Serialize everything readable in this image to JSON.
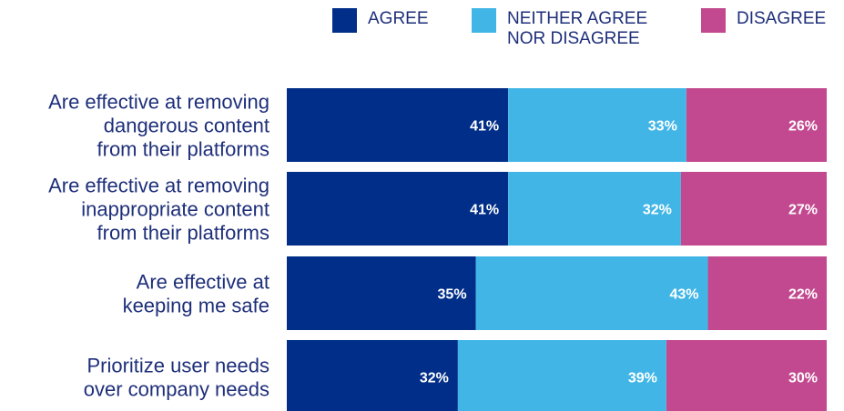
{
  "chart_data": {
    "type": "bar",
    "orientation": "horizontal",
    "stacked": true,
    "percent_scale": true,
    "categories": [
      [
        "Are effective at removing",
        "dangerous content",
        "from their platforms"
      ],
      [
        "Are effective at removing",
        "inappropriate content",
        "from their platforms"
      ],
      [
        "Are effective at",
        "keeping me safe"
      ],
      [
        "Prioritize user needs",
        "over company needs"
      ]
    ],
    "series": [
      {
        "name": "AGREE",
        "color": "#002e88",
        "values": [
          41,
          41,
          35,
          32
        ]
      },
      {
        "name": "NEITHER AGREE\nNOR DISAGREE",
        "color": "#41b6e6",
        "values": [
          33,
          32,
          43,
          39
        ]
      },
      {
        "name": "DISAGREE",
        "color": "#c2498f",
        "values": [
          26,
          27,
          22,
          30
        ]
      }
    ],
    "value_suffix": "%",
    "legend_position": "top",
    "grid": false
  }
}
